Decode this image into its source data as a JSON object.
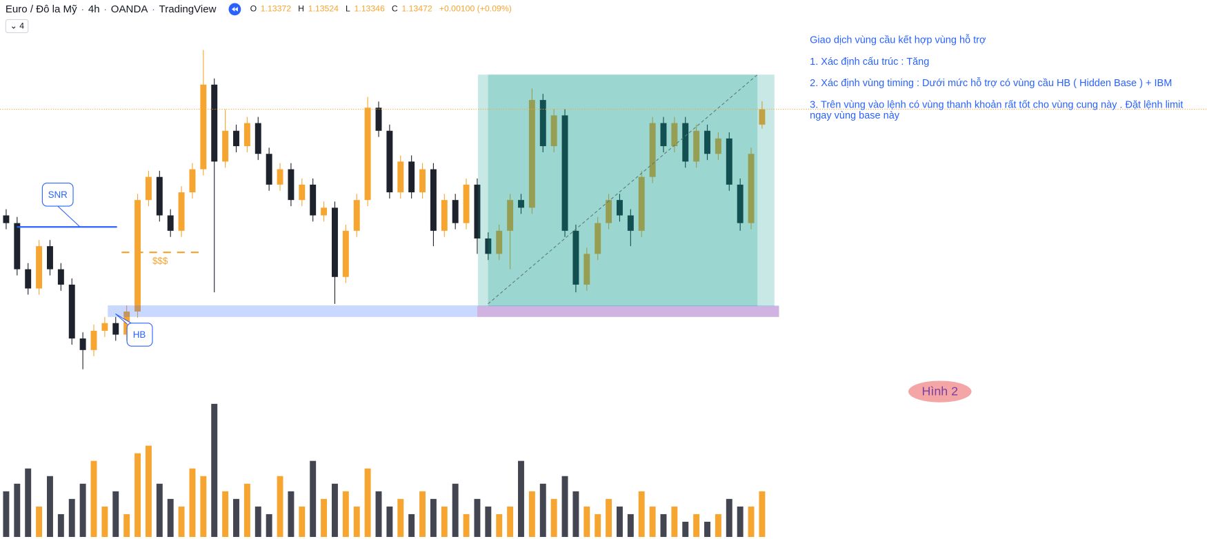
{
  "header": {
    "symbol": "Euro / Đô la Mỹ",
    "interval": "4h",
    "broker": "OANDA",
    "source": "TradingView",
    "collapse_count": "4",
    "open_label": "O",
    "open": 1.13372,
    "high_label": "H",
    "high": 1.13524,
    "low_label": "L",
    "low": 1.13346,
    "close_label": "C",
    "close": 1.13472,
    "change": {
      "value": 0.001,
      "label": "+0.00100"
    },
    "change_pct": {
      "value": 0.09,
      "label": "+0.09%"
    }
  },
  "chart_data": {
    "type": "candlestick",
    "up_color": "#f7a531",
    "down_color": "#1e222d",
    "volume_up_color": "#f7a531",
    "volume_down_color": "#434651",
    "ylim": [
      1.11732,
      1.13882
    ],
    "volume_ylim": [
      0,
      180
    ],
    "open": [
      1.12782,
      1.12732,
      1.12432,
      1.12307,
      1.12582,
      1.12432,
      1.12332,
      1.11982,
      1.11907,
      1.12032,
      1.12082,
      1.12007,
      1.12157,
      1.12882,
      1.13032,
      1.12782,
      1.12682,
      1.12932,
      1.13082,
      1.13632,
      1.13132,
      1.13332,
      1.13232,
      1.13382,
      1.13182,
      1.12982,
      1.13082,
      1.12882,
      1.12982,
      1.12782,
      1.12832,
      1.12382,
      1.12682,
      1.12882,
      1.13482,
      1.13332,
      1.12932,
      1.13132,
      1.12932,
      1.13082,
      1.12682,
      1.12882,
      1.12732,
      1.12982,
      1.12632,
      1.12532,
      1.12682,
      1.12882,
      1.12832,
      1.13532,
      1.13232,
      1.13432,
      1.12682,
      1.12332,
      1.12532,
      1.12732,
      1.12882,
      1.12782,
      1.12682,
      1.13032,
      1.13382,
      1.13232,
      1.13382,
      1.13132,
      1.13332,
      1.13182,
      1.13282,
      1.12982,
      1.12732,
      1.13372
    ],
    "high": [
      1.12822,
      1.12772,
      1.12472,
      1.12622,
      1.12622,
      1.12472,
      1.12372,
      1.12022,
      1.12072,
      1.12122,
      1.12122,
      1.12197,
      1.12922,
      1.13072,
      1.13072,
      1.12822,
      1.12972,
      1.13122,
      1.13857,
      1.13672,
      1.13472,
      1.13372,
      1.13422,
      1.13422,
      1.13222,
      1.13122,
      1.13122,
      1.13022,
      1.13022,
      1.12872,
      1.12872,
      1.12722,
      1.12922,
      1.13552,
      1.13522,
      1.13372,
      1.13172,
      1.13172,
      1.13122,
      1.13122,
      1.12922,
      1.12922,
      1.13022,
      1.13022,
      1.12672,
      1.12722,
      1.12922,
      1.12922,
      1.13607,
      1.13572,
      1.13472,
      1.13472,
      1.12722,
      1.12572,
      1.12772,
      1.12922,
      1.12922,
      1.12822,
      1.13072,
      1.13422,
      1.13422,
      1.13422,
      1.13422,
      1.13372,
      1.13372,
      1.13322,
      1.13322,
      1.13022,
      1.13222,
      1.13524
    ],
    "low": [
      1.12692,
      1.12392,
      1.12267,
      1.12267,
      1.12392,
      1.12292,
      1.11942,
      1.11782,
      1.11867,
      1.11992,
      1.11967,
      1.11967,
      1.12117,
      1.12842,
      1.12742,
      1.12642,
      1.12642,
      1.12892,
      1.13042,
      1.12282,
      1.13092,
      1.13192,
      1.13192,
      1.13142,
      1.12942,
      1.12942,
      1.12842,
      1.12842,
      1.12742,
      1.12742,
      1.12207,
      1.12342,
      1.12642,
      1.12842,
      1.13292,
      1.12892,
      1.12892,
      1.12892,
      1.12892,
      1.12582,
      1.12642,
      1.12692,
      1.12692,
      1.12532,
      1.12492,
      1.12492,
      1.12432,
      1.12792,
      1.12792,
      1.13192,
      1.13192,
      1.12642,
      1.12282,
      1.12292,
      1.12492,
      1.12692,
      1.12742,
      1.12582,
      1.12642,
      1.12992,
      1.13192,
      1.13192,
      1.13092,
      1.13092,
      1.13142,
      1.13142,
      1.12942,
      1.12682,
      1.12692,
      1.13346
    ],
    "close": [
      1.12732,
      1.12432,
      1.12307,
      1.12582,
      1.12432,
      1.12332,
      1.11982,
      1.11907,
      1.12032,
      1.12082,
      1.12007,
      1.12157,
      1.12882,
      1.13032,
      1.12782,
      1.12682,
      1.12932,
      1.13082,
      1.13632,
      1.13132,
      1.13332,
      1.13232,
      1.13382,
      1.13182,
      1.12982,
      1.13082,
      1.12882,
      1.12982,
      1.12782,
      1.12832,
      1.12382,
      1.12682,
      1.12882,
      1.13482,
      1.13332,
      1.12932,
      1.13132,
      1.12932,
      1.13082,
      1.12682,
      1.12882,
      1.12732,
      1.12982,
      1.12632,
      1.12532,
      1.12682,
      1.12882,
      1.12832,
      1.13532,
      1.13232,
      1.13432,
      1.12682,
      1.12332,
      1.12532,
      1.12732,
      1.12882,
      1.12782,
      1.12682,
      1.13032,
      1.13382,
      1.13232,
      1.13382,
      1.13132,
      1.13332,
      1.13182,
      1.13282,
      1.12982,
      1.12732,
      1.13182,
      1.13472
    ],
    "volume": [
      60,
      70,
      90,
      40,
      80,
      30,
      50,
      70,
      100,
      40,
      60,
      30,
      110,
      120,
      70,
      50,
      40,
      90,
      80,
      175,
      60,
      50,
      70,
      40,
      30,
      80,
      60,
      40,
      100,
      50,
      70,
      60,
      40,
      90,
      60,
      40,
      50,
      30,
      60,
      50,
      40,
      70,
      30,
      50,
      40,
      30,
      40,
      100,
      60,
      70,
      50,
      80,
      60,
      40,
      30,
      50,
      40,
      30,
      60,
      40,
      30,
      40,
      20,
      30,
      20,
      30,
      50,
      40,
      40,
      60
    ]
  },
  "annotations": {
    "snr": "SNR",
    "hb": "HB",
    "liquidity": "$$$",
    "figure": "Hình 2"
  },
  "notes": {
    "title": "Giao dịch vùng cầu kết hợp vùng hỗ trợ",
    "items": [
      "1. Xác định cấu trúc : Tăng",
      "2. Xác định vùng timing : Dưới mức hỗ trợ có vùng cầu HB ( Hidden Base )  + IBM",
      "3. Trên vùng vào lệnh có vùng thanh khoản rất tốt cho vùng cung này . Đặt lệnh limit ngay vùng base này"
    ]
  }
}
